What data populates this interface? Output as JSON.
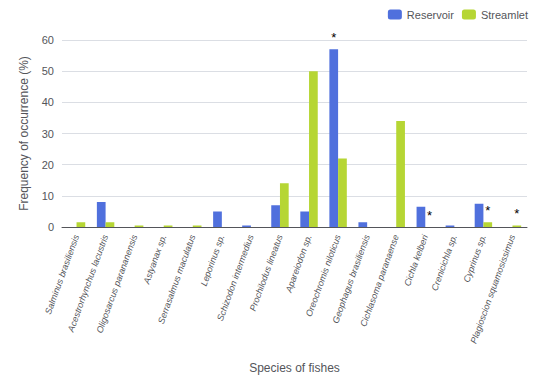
{
  "chart_data": {
    "type": "bar",
    "categories": [
      "Salminus brasiliensis",
      "Acestrorhynchus lacustris",
      "Oligosarcus parananensis",
      "Astyanax sp.",
      "Serrasalmus maculatus",
      "Leporinus sp.",
      "Schizodon intermedius",
      "Prochilodus lineatus",
      "Apareiodon sp.",
      "Oreochromis niloticus",
      "Geophagus brasiliensis",
      "Cichlasoma paranaense",
      "Cichla kelberi",
      "Crenicichla sp.",
      "Cyprinus sp.",
      "Plagioscion squamosissimus"
    ],
    "series": [
      {
        "name": "Reservoir",
        "values": [
          0,
          8,
          0,
          0,
          0,
          5,
          0.5,
          7,
          5,
          57,
          1.5,
          0,
          6.5,
          0.5,
          7.5,
          0
        ]
      },
      {
        "name": "Streamlet",
        "values": [
          1.5,
          1.5,
          0.5,
          0.5,
          0.5,
          0,
          0,
          14,
          50,
          22,
          0,
          34,
          0,
          0,
          1.5,
          0.5
        ]
      }
    ],
    "annotations": [
      {
        "text": "*",
        "series": "Reservoir",
        "category": "Oreochromis niloticus"
      },
      {
        "text": "*",
        "series": "Streamlet",
        "category": "Cichla kelberi"
      },
      {
        "text": "*",
        "series": "Streamlet",
        "category": "Cyprinus sp."
      },
      {
        "text": "*",
        "series": "Streamlet",
        "category": "Plagioscion squamosissimus"
      }
    ],
    "xlabel": "Species of fishes",
    "ylabel": "Frequency of occurrence (%)",
    "ylim": [
      0,
      60
    ],
    "yticks": [
      0,
      10,
      20,
      30,
      40,
      50,
      60
    ],
    "grid": true,
    "legend": "upper right"
  }
}
